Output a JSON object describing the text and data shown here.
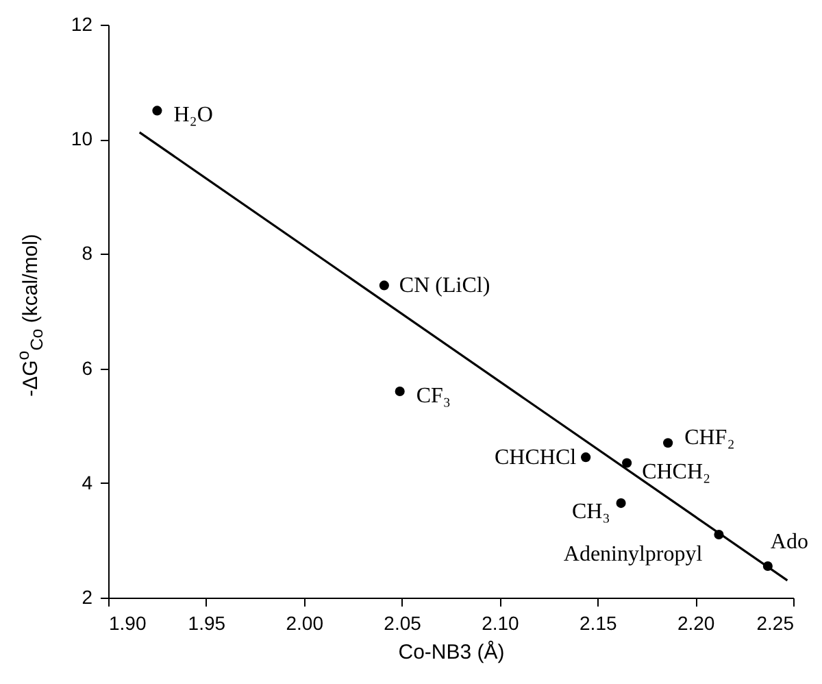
{
  "chart_data": {
    "type": "scatter",
    "xlabel": "Co-NB3 (Å)",
    "ylabel": "-ΔG$^{o}$$_{Co}$ (kcal/mol)",
    "xlim": [
      1.9,
      2.25
    ],
    "xticks": [
      {
        "value": 1.9,
        "label": "1.90"
      },
      1.95,
      {
        "value": 2.0,
        "label": "2.00"
      },
      2.05,
      {
        "value": 2.1,
        "label": "2.10"
      },
      2.15,
      {
        "value": 2.2,
        "label": "2.20"
      },
      2.25
    ],
    "ylim": [
      2,
      12
    ],
    "yticks": [
      2,
      4,
      6,
      8,
      10,
      12
    ],
    "grid": false,
    "marker": "circle",
    "series": [
      {
        "color": "#000000",
        "x": [
          1.925,
          2.041,
          2.049,
          2.144,
          2.165,
          2.186,
          2.162,
          2.212,
          2.237
        ],
        "values": [
          10.5,
          7.45,
          5.6,
          4.45,
          4.35,
          4.7,
          3.65,
          3.1,
          2.55
        ],
        "value_labels": [
          "H₂O",
          "CN (LiCl)",
          "CF₃",
          "CHCHCl",
          "CHCH₂",
          "CHF₂",
          "CH₃",
          "Adeninylpropyl",
          "Ado"
        ]
      },
      {
        "type": "line",
        "color": "#000000",
        "x": [
          1.916,
          2.247
        ],
        "values": [
          10.12,
          2.3
        ],
        "marker": "none",
        "line_style": "solid"
      }
    ]
  }
}
